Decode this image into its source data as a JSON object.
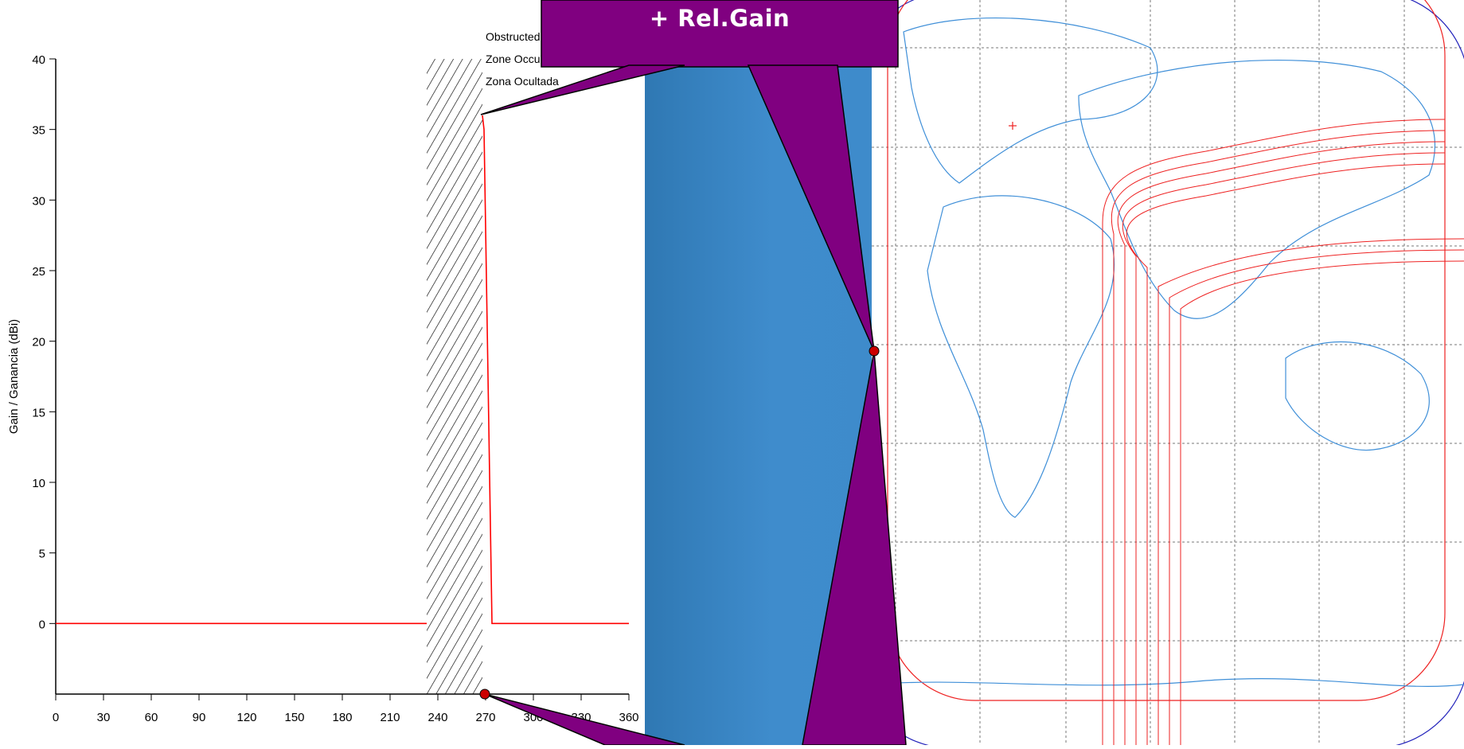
{
  "callout": {
    "label": "+ Rel.Gain",
    "fill": "#800080"
  },
  "chart_data": {
    "type": "line",
    "title": "",
    "xlabel": "",
    "ylabel": "Gain / Ganancia (dBi)",
    "xlim": [
      0,
      360
    ],
    "ylim": [
      -5,
      40
    ],
    "xticks": [
      0,
      30,
      60,
      90,
      120,
      150,
      180,
      210,
      240,
      270,
      300,
      330,
      360
    ],
    "xtick_labels": [
      "0",
      "30",
      "60",
      "90",
      "120",
      "150",
      "180",
      "210",
      "240",
      "270",
      "300",
      "330",
      "360"
    ],
    "yticks": [
      0,
      5,
      10,
      15,
      20,
      25,
      30,
      35,
      40
    ],
    "ytick_labels": [
      "0",
      "5",
      "10",
      "15",
      "20",
      "25",
      "30",
      "35",
      "40"
    ],
    "grid": false,
    "series": [
      {
        "color": "#ff0000",
        "x": [
          0,
          233
        ],
        "y": [
          0,
          0
        ]
      },
      {
        "color": "#ff0000",
        "x": [
          268,
          269,
          274,
          276,
          360
        ],
        "y": [
          36,
          35,
          0,
          0,
          0
        ]
      }
    ],
    "obstructed_zone": {
      "x_start": 233,
      "x_end": 268,
      "y_start": -5,
      "y_end": 40
    },
    "obstructed_labels": [
      "Obstructed Z",
      "Zone Occulté",
      "Zona Ocultada"
    ]
  }
}
